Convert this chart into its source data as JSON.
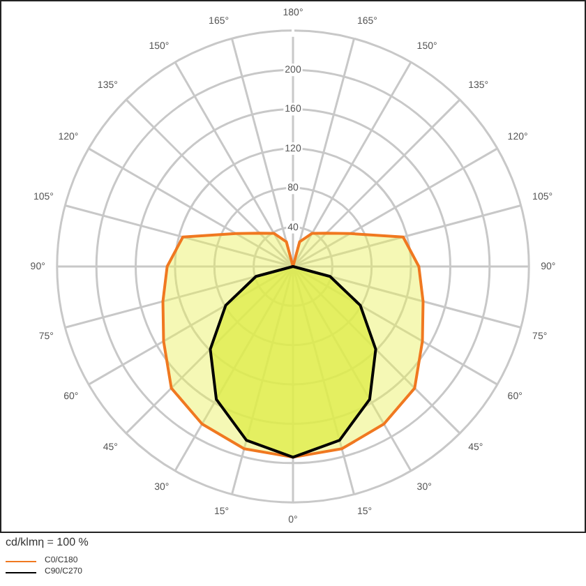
{
  "chart_data": {
    "type": "radar",
    "categories": [
      "180°",
      "165°",
      "150°",
      "135°",
      "120°",
      "105°",
      "90°",
      "75°",
      "60°",
      "45°",
      "30°",
      "15°",
      "0°",
      "15°",
      "30°",
      "45°",
      "60°",
      "75°",
      "90°",
      "105°",
      "120°",
      "135°",
      "150°",
      "165°"
    ],
    "series": [
      {
        "name": "C0/C180",
        "color": "#f07820",
        "values": [
          0,
          26,
          39,
          48,
          67,
          116,
          128,
          137,
          152,
          175,
          185,
          192,
          194,
          192,
          185,
          175,
          152,
          137,
          128,
          116,
          67,
          48,
          39,
          26
        ]
      },
      {
        "name": "C90/C270",
        "color": "#000000",
        "values": [
          0,
          0,
          0,
          0,
          0,
          0,
          0,
          39,
          79,
          119,
          156,
          183,
          194,
          183,
          156,
          119,
          79,
          39,
          0,
          0,
          0,
          0,
          0,
          0
        ]
      }
    ],
    "ylim": [
      0,
      240
    ],
    "yticks": [
      40,
      80,
      120,
      160,
      200
    ],
    "grid": true,
    "legend": "bottom left",
    "annotations": [
      "cd/klmη = 100 %"
    ]
  }
}
